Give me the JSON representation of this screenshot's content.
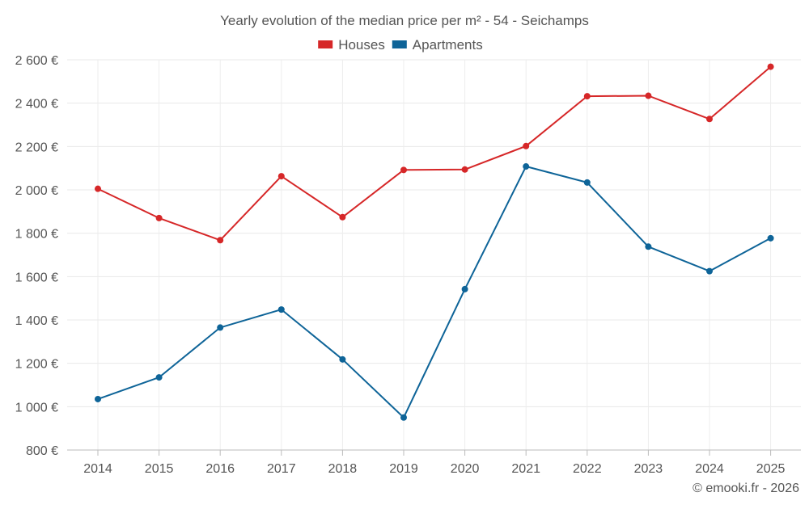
{
  "chart_data": {
    "type": "line",
    "title": "Yearly evolution of the median price per m² - 54 - Seichamps",
    "xlabel": "",
    "ylabel": "",
    "categories": [
      "2014",
      "2015",
      "2016",
      "2017",
      "2018",
      "2019",
      "2020",
      "2021",
      "2022",
      "2023",
      "2024",
      "2025"
    ],
    "ylim": [
      800,
      2600
    ],
    "yticks": [
      800,
      1000,
      1200,
      1400,
      1600,
      1800,
      2000,
      2200,
      2400,
      2600
    ],
    "ytick_labels": [
      "800 €",
      "1 000 €",
      "1 200 €",
      "1 400 €",
      "1 600 €",
      "1 800 €",
      "2 000 €",
      "2 200 €",
      "2 400 €",
      "2 600 €"
    ],
    "grid": true,
    "legend_position": "top-center",
    "series": [
      {
        "name": "Houses",
        "color": "#d62728",
        "values": [
          2005,
          1870,
          1768,
          2063,
          1874,
          2092,
          2094,
          2202,
          2432,
          2434,
          2327,
          2568
        ]
      },
      {
        "name": "Apartments",
        "color": "#0e6498",
        "values": [
          1035,
          1135,
          1365,
          1448,
          1218,
          950,
          1542,
          2108,
          2034,
          1738,
          1625,
          1777
        ]
      }
    ],
    "credit": "© emooki.fr - 2026"
  }
}
